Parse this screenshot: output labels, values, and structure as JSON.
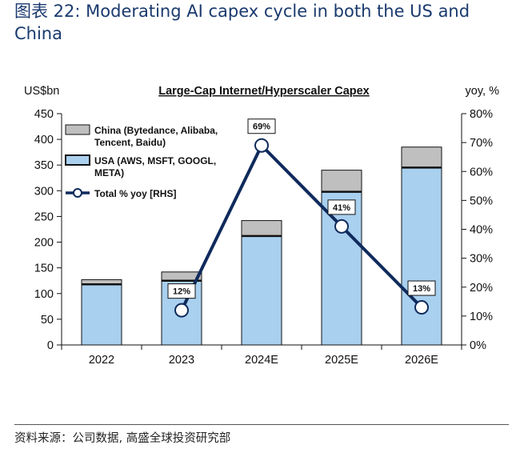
{
  "figure": {
    "title": "图表 22: Moderating AI capex cycle in both the US and China",
    "source": "资料来源：公司数据, 高盛全球投资研究部"
  },
  "chart_data": {
    "type": "bar",
    "title": "Large-Cap Internet/Hyperscaler Capex",
    "ylabel": "US$bn",
    "y2label": "yoy, %",
    "categories": [
      "2022",
      "2023",
      "2024E",
      "2025E",
      "2026E"
    ],
    "ylim": [
      0,
      450
    ],
    "yticks": [
      0,
      50,
      100,
      150,
      200,
      250,
      300,
      350,
      400,
      450
    ],
    "y2lim": [
      0,
      80
    ],
    "y2ticks": [
      "0%",
      "10%",
      "20%",
      "30%",
      "40%",
      "50%",
      "60%",
      "70%",
      "80%"
    ],
    "stacked": true,
    "series": [
      {
        "name": "USA (AWS, MSFT, GOOGL, META)",
        "kind": "bar",
        "color": "#a9d0ef",
        "values": [
          118,
          125,
          212,
          298,
          345
        ]
      },
      {
        "name": "China (Bytedance, Alibaba, Tencent, Baidu)",
        "kind": "bar",
        "color": "#bfbfbf",
        "values": [
          9,
          17,
          30,
          42,
          40
        ]
      },
      {
        "name": "Total % yoy [RHS]",
        "kind": "line",
        "axis": "right",
        "color": "#0f2a5c",
        "values": [
          null,
          12,
          69,
          41,
          13
        ],
        "labels": [
          "",
          "12%",
          "69%",
          "41%",
          "13%"
        ]
      }
    ],
    "legend_position": "top-left",
    "grid": false
  }
}
